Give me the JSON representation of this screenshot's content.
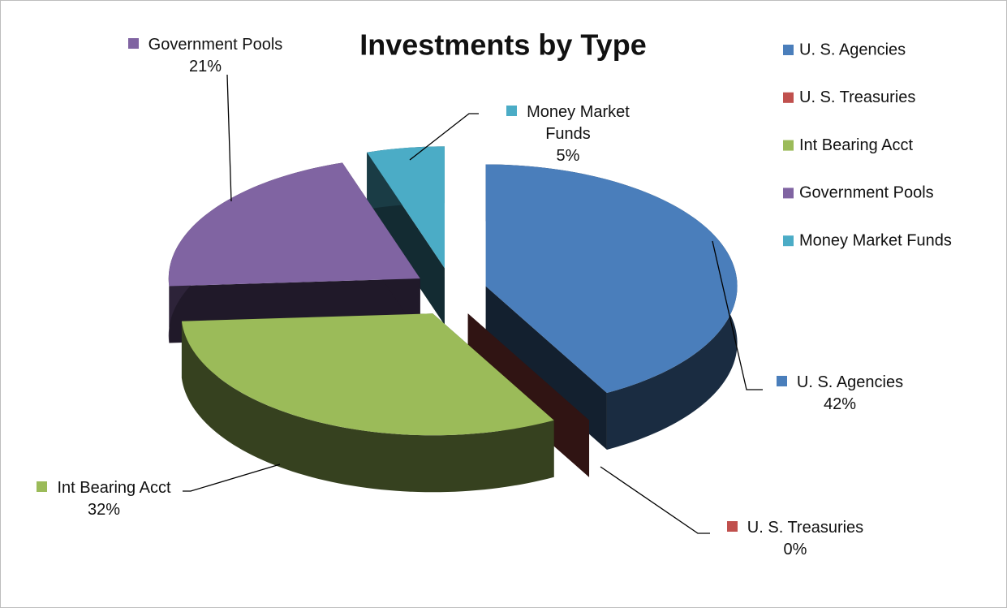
{
  "chart_data": {
    "type": "pie",
    "title": "Investments by Type",
    "categories": [
      "U. S. Agencies",
      "U. S. Treasuries",
      "Int Bearing Acct",
      "Government Pools",
      "Money Market Funds"
    ],
    "values": [
      42,
      0,
      32,
      21,
      5
    ],
    "value_labels": [
      "42%",
      "0%",
      "32%",
      "21%",
      "5%"
    ],
    "colors": [
      "#4a7ebb",
      "#c0504d",
      "#9bbb59",
      "#8064a2",
      "#4bacc6"
    ],
    "legend": "right"
  }
}
